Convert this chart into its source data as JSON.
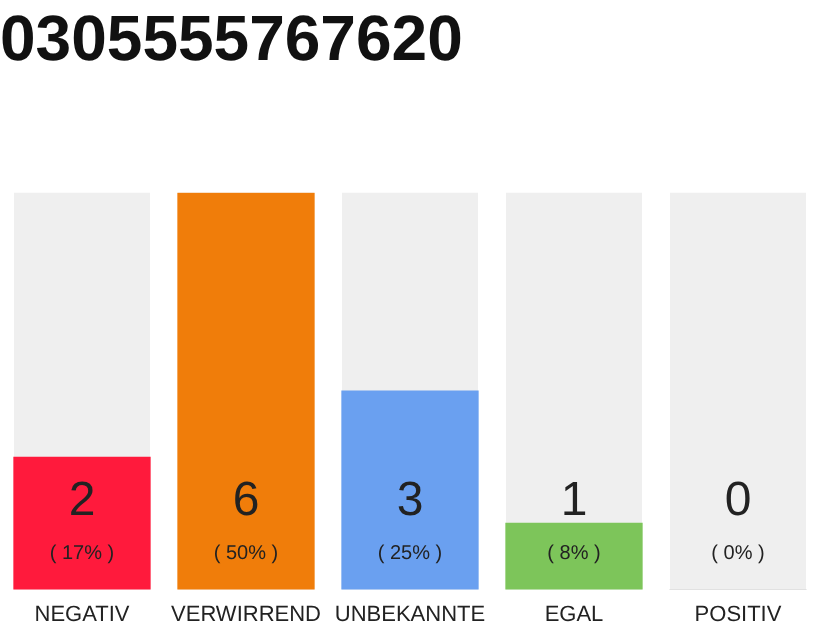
{
  "chart_data": {
    "type": "bar",
    "title": "0305555767620",
    "categories": [
      "NEGATIV",
      "VERWIRREND",
      "UNBEKANNTE",
      "EGAL",
      "POSITIV"
    ],
    "values": [
      2,
      6,
      3,
      1,
      0
    ],
    "colors": [
      "#ff1a3c",
      "#f07d0a",
      "#6aa0f0",
      "#7dc55a",
      "#cccccc"
    ],
    "ylim": [
      0,
      6
    ],
    "tick_labels": "x",
    "data_labels": true,
    "grid": false,
    "legend": false,
    "annotations": [
      "( 17% )",
      "( 50% )",
      "( 25% )",
      "( 8% )",
      "( 0% )"
    ]
  }
}
